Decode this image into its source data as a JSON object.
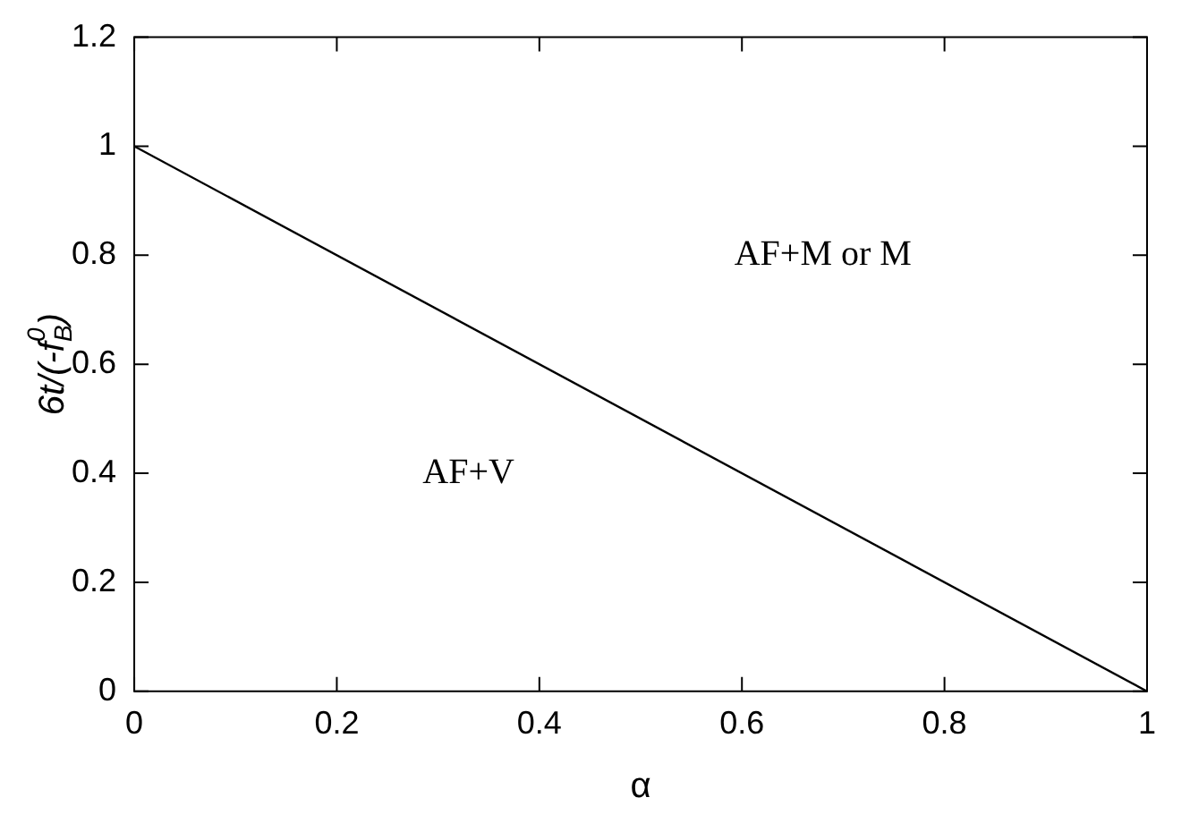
{
  "chart_data": {
    "type": "line",
    "xlabel": "α",
    "ylabel": "6t/(-f$_{B}$$^{0}$)",
    "x": [
      0,
      1
    ],
    "series": [
      {
        "color": "#000000",
        "values": [
          1,
          0
        ]
      }
    ],
    "xlim": [
      0,
      1
    ],
    "xticks": [
      0,
      0.2,
      0.4,
      0.6,
      0.8,
      1
    ],
    "ylim": [
      0,
      1.2
    ],
    "yticks": [
      0,
      0.2,
      0.4,
      0.6,
      0.8,
      1,
      1.2
    ],
    "annotations": [
      "AF+V",
      "AF+M or M"
    ],
    "legend": false,
    "marker": "none",
    "line_style": "solid",
    "grid": false
  }
}
